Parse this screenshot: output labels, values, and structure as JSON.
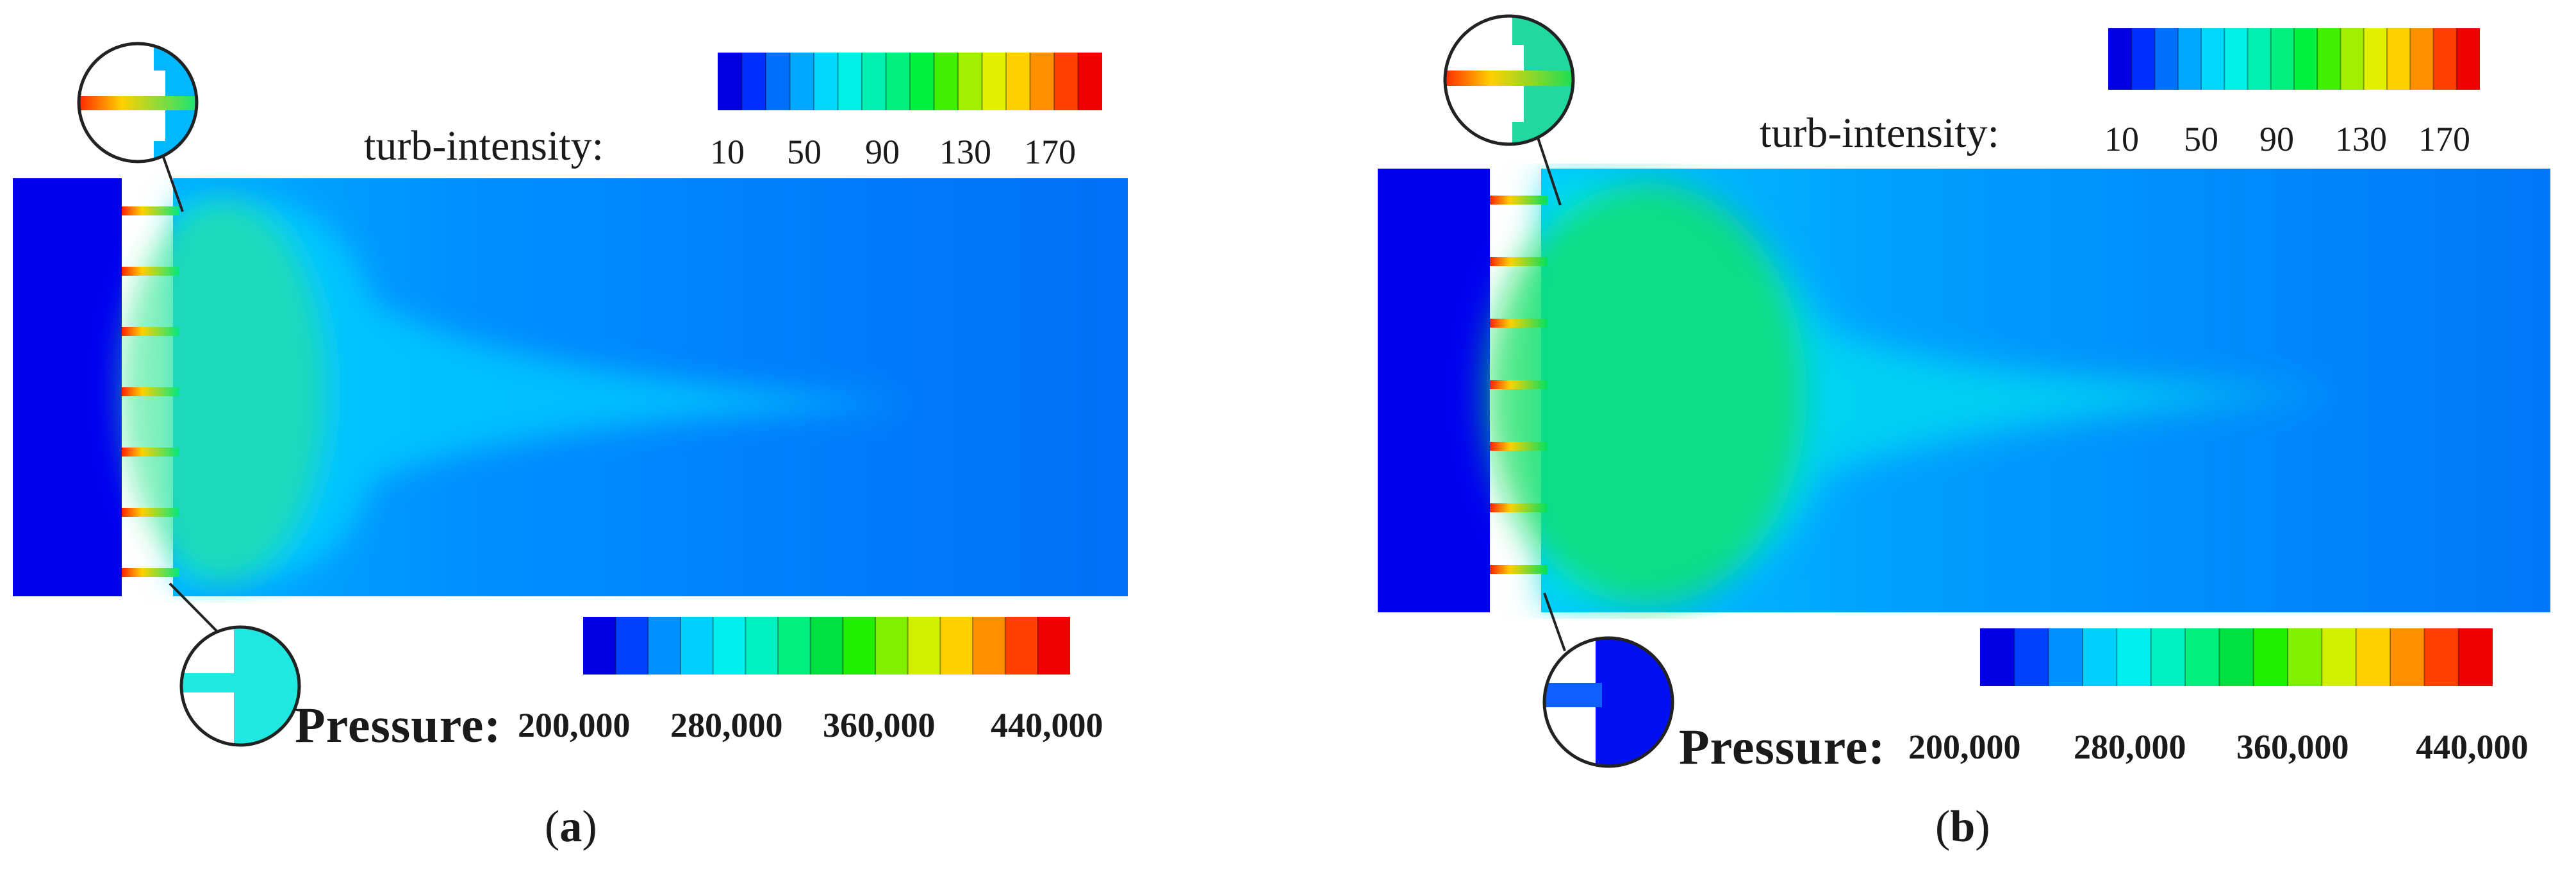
{
  "panels": [
    {
      "id": "a",
      "caption_open": "(",
      "caption_letter": "a",
      "caption_close": ")",
      "turb_legend": {
        "title": "turb-intensity:",
        "ticks": [
          "10",
          "50",
          "90",
          "130",
          "170"
        ],
        "colors": [
          "#0000e0",
          "#0030ff",
          "#0070ff",
          "#00a8ff",
          "#00d8ff",
          "#00f0e8",
          "#00f0b0",
          "#00f080",
          "#00f040",
          "#40f000",
          "#a0f000",
          "#e0f000",
          "#ffd000",
          "#ff9000",
          "#ff4000",
          "#f00000"
        ]
      },
      "pressure_legend": {
        "title": "Pressure:",
        "ticks": [
          "200,000",
          "280,000",
          "360,000",
          "440,000"
        ],
        "colors": [
          "#0000e0",
          "#0040ff",
          "#0090ff",
          "#00d0ff",
          "#00f0f0",
          "#00f0c0",
          "#00f080",
          "#00e040",
          "#20f000",
          "#80f000",
          "#d0f000",
          "#ffd000",
          "#ff9000",
          "#ff4000",
          "#f00000"
        ]
      }
    },
    {
      "id": "b",
      "caption_open": "(",
      "caption_letter": "b",
      "caption_close": ")",
      "turb_legend": {
        "title": "turb-intensity:",
        "ticks": [
          "10",
          "50",
          "90",
          "130",
          "170"
        ],
        "colors": [
          "#0000e0",
          "#0030ff",
          "#0070ff",
          "#00a8ff",
          "#00d8ff",
          "#00f0e8",
          "#00f0b0",
          "#00f080",
          "#00f040",
          "#40f000",
          "#a0f000",
          "#e0f000",
          "#ffd000",
          "#ff9000",
          "#ff4000",
          "#f00000"
        ]
      },
      "pressure_legend": {
        "title": "Pressure:",
        "ticks": [
          "200,000",
          "280,000",
          "360,000",
          "440,000"
        ],
        "colors": [
          "#0000e0",
          "#0040ff",
          "#0090ff",
          "#00d0ff",
          "#00f0f0",
          "#00f0c0",
          "#00f080",
          "#00e040",
          "#20f000",
          "#80f000",
          "#d0f000",
          "#ffd000",
          "#ff9000",
          "#ff4000",
          "#f00000"
        ]
      }
    }
  ]
}
